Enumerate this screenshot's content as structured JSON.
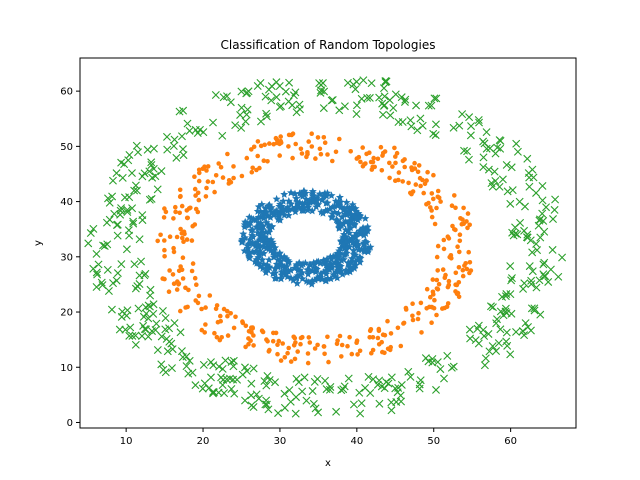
{
  "chart_data": {
    "type": "scatter",
    "title": "Classification of Random Topologies",
    "xlabel": "x",
    "ylabel": "y",
    "xlim": [
      4,
      68.5
    ],
    "ylim": [
      -1,
      66
    ],
    "xticks": [
      "10",
      "20",
      "30",
      "40",
      "50",
      "60"
    ],
    "yticks": [
      "0",
      "10",
      "20",
      "30",
      "40",
      "50",
      "60"
    ],
    "grid": false,
    "legend": "none",
    "series": [
      {
        "marker": "star",
        "color": "#1f77b4",
        "center": [
          33.5,
          33.5
        ],
        "radius_range": [
          4.5,
          8.5
        ],
        "point_count": 500
      },
      {
        "marker": "circle",
        "color": "#ff7f0e",
        "center": [
          34.5,
          31.5
        ],
        "radius_range": [
          16,
          21
        ],
        "point_count": 400
      },
      {
        "marker": "x",
        "color": "#2ca02c",
        "center": [
          36,
          32
        ],
        "radius_range": [
          24,
          31
        ],
        "point_count": 500
      }
    ]
  }
}
